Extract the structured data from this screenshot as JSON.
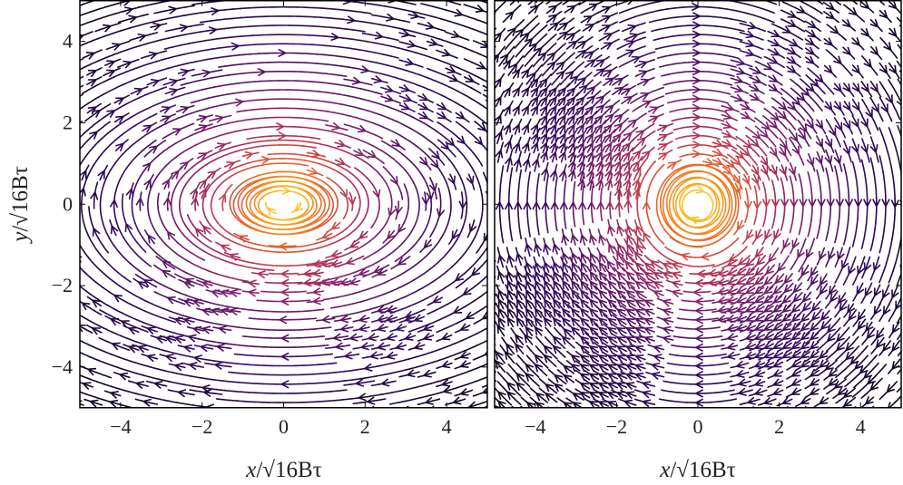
{
  "chart_data": [
    {
      "type": "streamplot",
      "panel": "left",
      "title": "",
      "xlabel": "x/√16Bτ",
      "ylabel": "y/√16Bτ",
      "xlim": [
        -5,
        5
      ],
      "ylim": [
        -5,
        5
      ],
      "xticks": [
        -4,
        -2,
        0,
        2,
        4
      ],
      "yticks": [
        -4,
        -2,
        0,
        2,
        4
      ],
      "colormap": "inferno",
      "color_meaning": "speed/magnitude, highest (yellow) near origin, lowest (black) at corners",
      "field": "spiral vortex centered at origin: clockwise rotation with radial component — arrows point outward along upper-left/lower-right diagonal and inward along lower-left/upper-right",
      "grid": false
    },
    {
      "type": "streamplot",
      "panel": "right",
      "title": "",
      "xlabel": "x/√16Bτ",
      "ylabel": "",
      "xlim": [
        -5,
        5
      ],
      "ylim": [
        -5,
        5
      ],
      "xticks": [
        -4,
        -2,
        0,
        2,
        4
      ],
      "yticks": [
        -4,
        -2,
        0,
        2,
        4
      ],
      "colormap": "inferno",
      "color_meaning": "speed/magnitude, highest (yellow) near origin, lowest (black) at corners",
      "field": "nearly circular clockwise vortex centered at origin",
      "grid": false
    }
  ],
  "axes": {
    "xlabel_text": "x",
    "ylabel_text": "y",
    "label_suffix": "/√16Bτ",
    "tick_labels": [
      "−4",
      "−2",
      "0",
      "2",
      "4"
    ]
  },
  "colors": {
    "frame": "#000000",
    "inferno_stops": [
      "#000004",
      "#320a5e",
      "#781c6d",
      "#bc3754",
      "#ed6925",
      "#fbb61a",
      "#fcffa4"
    ]
  }
}
